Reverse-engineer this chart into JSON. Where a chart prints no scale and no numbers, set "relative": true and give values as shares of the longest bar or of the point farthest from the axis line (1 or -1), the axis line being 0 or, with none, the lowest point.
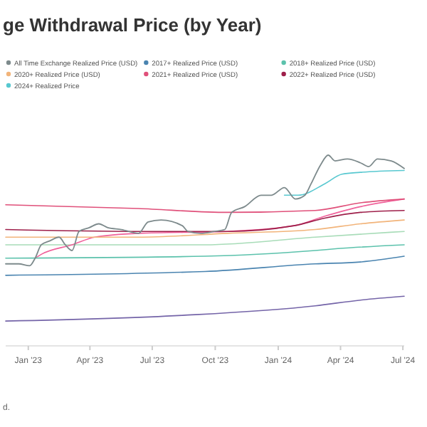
{
  "chart_data": {
    "type": "line",
    "title": "ge Withdrawal Price (by Year)",
    "relative": true,
    "legend": "top",
    "marker": "none",
    "line_style": "solid",
    "xlim": [
      "2022-11-29",
      "2024-07-03"
    ],
    "xticks": [
      {
        "value": "2023-01-01",
        "label": "Jan '23"
      },
      {
        "value": "2023-04-01",
        "label": "Apr '23"
      },
      {
        "value": "2023-07-01",
        "label": "Jul '23"
      },
      {
        "value": "2023-10-01",
        "label": "Oct '23"
      },
      {
        "value": "2024-01-01",
        "label": "Jan '24"
      },
      {
        "value": "2024-04-01",
        "label": "Apr '24"
      },
      {
        "value": "2024-07-01",
        "label": "Jul '24"
      }
    ],
    "annotations": [
      "d."
    ],
    "series": [
      {
        "name": "All Time Exchange Realized Price (USD)",
        "color": "#7d8a8c",
        "x": [
          "2022-11-29",
          "2022-12-18",
          "2023-01-03",
          "2023-01-11",
          "2023-01-20",
          "2023-02-01",
          "2023-02-15",
          "2023-02-24",
          "2023-03-06",
          "2023-03-16",
          "2023-03-31",
          "2023-04-14",
          "2023-04-27",
          "2023-05-17",
          "2023-06-11",
          "2023-06-25",
          "2023-07-14",
          "2023-08-14",
          "2023-08-22",
          "2023-09-10",
          "2023-09-30",
          "2023-10-15",
          "2023-10-25",
          "2023-11-13",
          "2023-12-07",
          "2023-12-22",
          "2024-01-10",
          "2024-01-26",
          "2024-02-09",
          "2024-02-18",
          "2024-03-03",
          "2024-03-14",
          "2024-03-24",
          "2024-04-11",
          "2024-04-30",
          "2024-05-12",
          "2024-05-25",
          "2024-06-14",
          "2024-07-03"
        ],
        "values": [
          0.43,
          0.43,
          0.42,
          0.46,
          0.53,
          0.55,
          0.57,
          0.53,
          0.5,
          0.6,
          0.62,
          0.64,
          0.62,
          0.61,
          0.59,
          0.65,
          0.66,
          0.63,
          0.6,
          0.59,
          0.6,
          0.61,
          0.7,
          0.73,
          0.79,
          0.79,
          0.83,
          0.77,
          0.79,
          0.85,
          0.95,
          1,
          0.97,
          0.98,
          0.96,
          0.94,
          0.98,
          0.97,
          0.93
        ]
      },
      {
        "name": "2017+ Realized Price (USD)",
        "color": "#4a84b0",
        "x": [
          "2022-11-29",
          "2023-09-16",
          "2024-02-24",
          "2024-04-30",
          "2024-07-03"
        ],
        "values": [
          0.37,
          0.39,
          0.43,
          0.44,
          0.47
        ]
      },
      {
        "name": "2018+ Realized Price (USD)",
        "color": "#5cc2ac",
        "x": [
          "2022-11-29",
          "2023-09-16",
          "2024-02-24",
          "2024-03-28",
          "2024-07-03"
        ],
        "values": [
          0.46,
          0.47,
          0.5,
          0.51,
          0.53
        ]
      },
      {
        "name": "2020+ Realized Price (USD)",
        "color": "#f2b47a",
        "x": [
          "2022-11-29",
          "2023-06-11",
          "2023-10-19",
          "2024-02-24",
          "2024-04-30",
          "2024-07-03"
        ],
        "values": [
          0.57,
          0.57,
          0.59,
          0.61,
          0.64,
          0.66
        ]
      },
      {
        "name": "2021+ Realized Price (USD)",
        "color": "#e0507a",
        "x": [
          "2022-11-29",
          "2023-06-11",
          "2023-10-19",
          "2024-02-24",
          "2024-04-30",
          "2024-07-03"
        ],
        "values": [
          0.74,
          0.72,
          0.7,
          0.71,
          0.75,
          0.77
        ]
      },
      {
        "name": "2022+ Realized Price (USD)",
        "color": "#9e1f4a",
        "x": [
          "2022-11-29",
          "2023-06-11",
          "2023-10-19",
          "2024-01-24",
          "2024-03-09",
          "2024-04-30",
          "2024-07-03"
        ],
        "values": [
          0.61,
          0.6,
          0.6,
          0.63,
          0.67,
          0.7,
          0.71
        ]
      },
      {
        "name": "2024+ Realized Price",
        "color": "#58c8d0",
        "x": [
          "2024-01-10",
          "2024-01-30",
          "2024-03-09",
          "2024-04-03",
          "2024-04-30",
          "2024-07-03"
        ],
        "values": [
          0.79,
          0.79,
          0.85,
          0.9,
          0.91,
          0.92
        ]
      },
      {
        "color": "#f0609a",
        "x": [
          "2023-01-11",
          "2023-01-20",
          "2023-03-06",
          "2023-04-08",
          "2023-06-11",
          "2023-10-19",
          "2024-01-24",
          "2024-03-09",
          "2024-04-30",
          "2024-07-03"
        ],
        "values": [
          0.46,
          0.48,
          0.53,
          0.57,
          0.59,
          0.6,
          0.63,
          0.68,
          0.73,
          0.77
        ]
      },
      {
        "color": "#a8dcb8",
        "x": [
          "2022-11-29",
          "2023-09-16",
          "2024-02-24",
          "2024-07-03"
        ],
        "values": [
          0.53,
          0.53,
          0.57,
          0.6
        ]
      },
      {
        "color": "#7464a8",
        "x": [
          "2022-11-29",
          "2023-08-14",
          "2024-02-24",
          "2024-04-30",
          "2024-07-03"
        ],
        "values": [
          0.13,
          0.16,
          0.21,
          0.24,
          0.26
        ]
      }
    ]
  }
}
